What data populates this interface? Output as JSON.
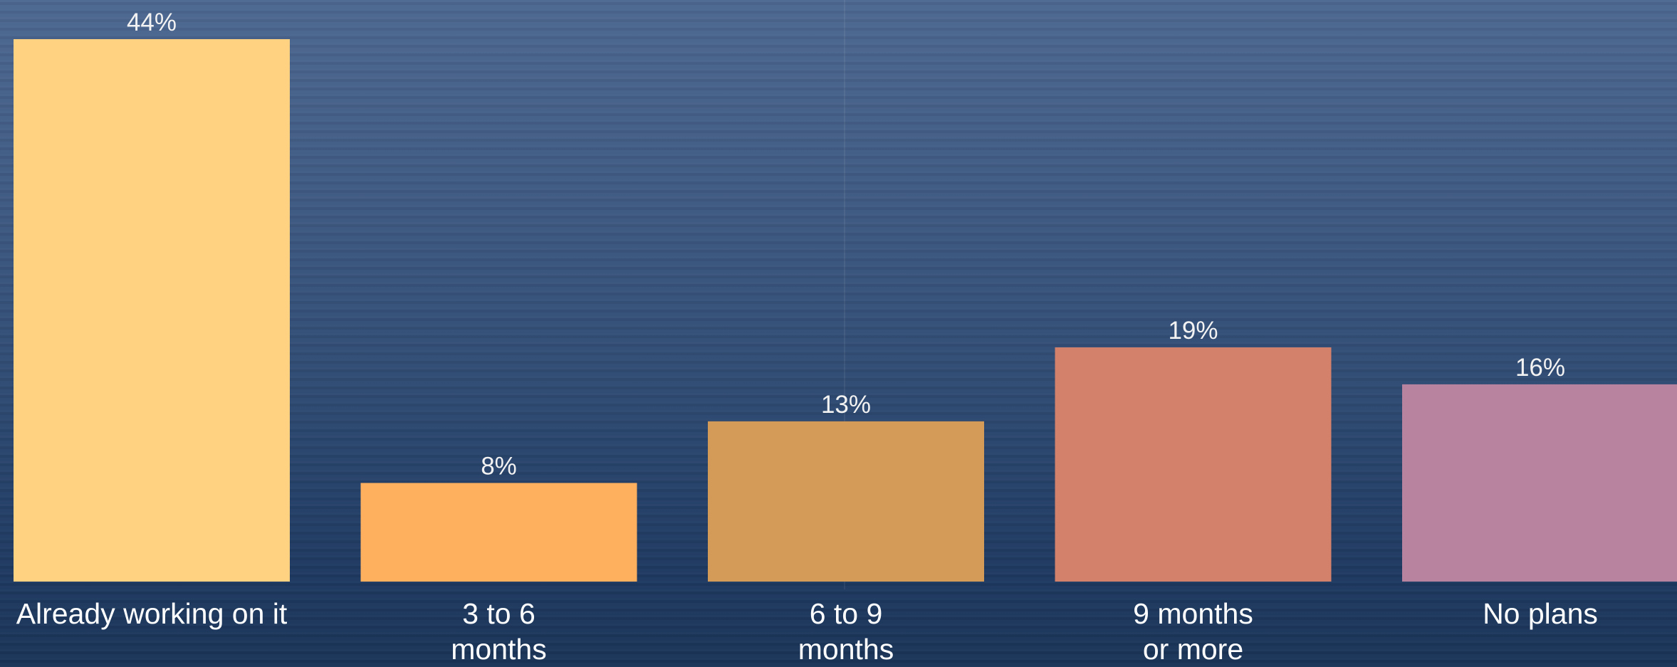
{
  "chart_data": {
    "type": "bar",
    "title": "",
    "xlabel": "",
    "ylabel": "",
    "categories": [
      [
        "Already working on it"
      ],
      [
        "3 to 6",
        "months"
      ],
      [
        "6 to 9",
        "months"
      ],
      [
        "9 months",
        "or more"
      ],
      [
        "No plans"
      ]
    ],
    "values": [
      44,
      8,
      13,
      19,
      16
    ],
    "value_labels": [
      "44%",
      "8%",
      "13%",
      "19%",
      "16%"
    ],
    "colors": [
      "#fed280",
      "#feb05e",
      "#d49b58",
      "#d4816b",
      "#b8839f"
    ],
    "ylim": [
      0,
      44
    ],
    "grid": false,
    "legend": "none"
  }
}
